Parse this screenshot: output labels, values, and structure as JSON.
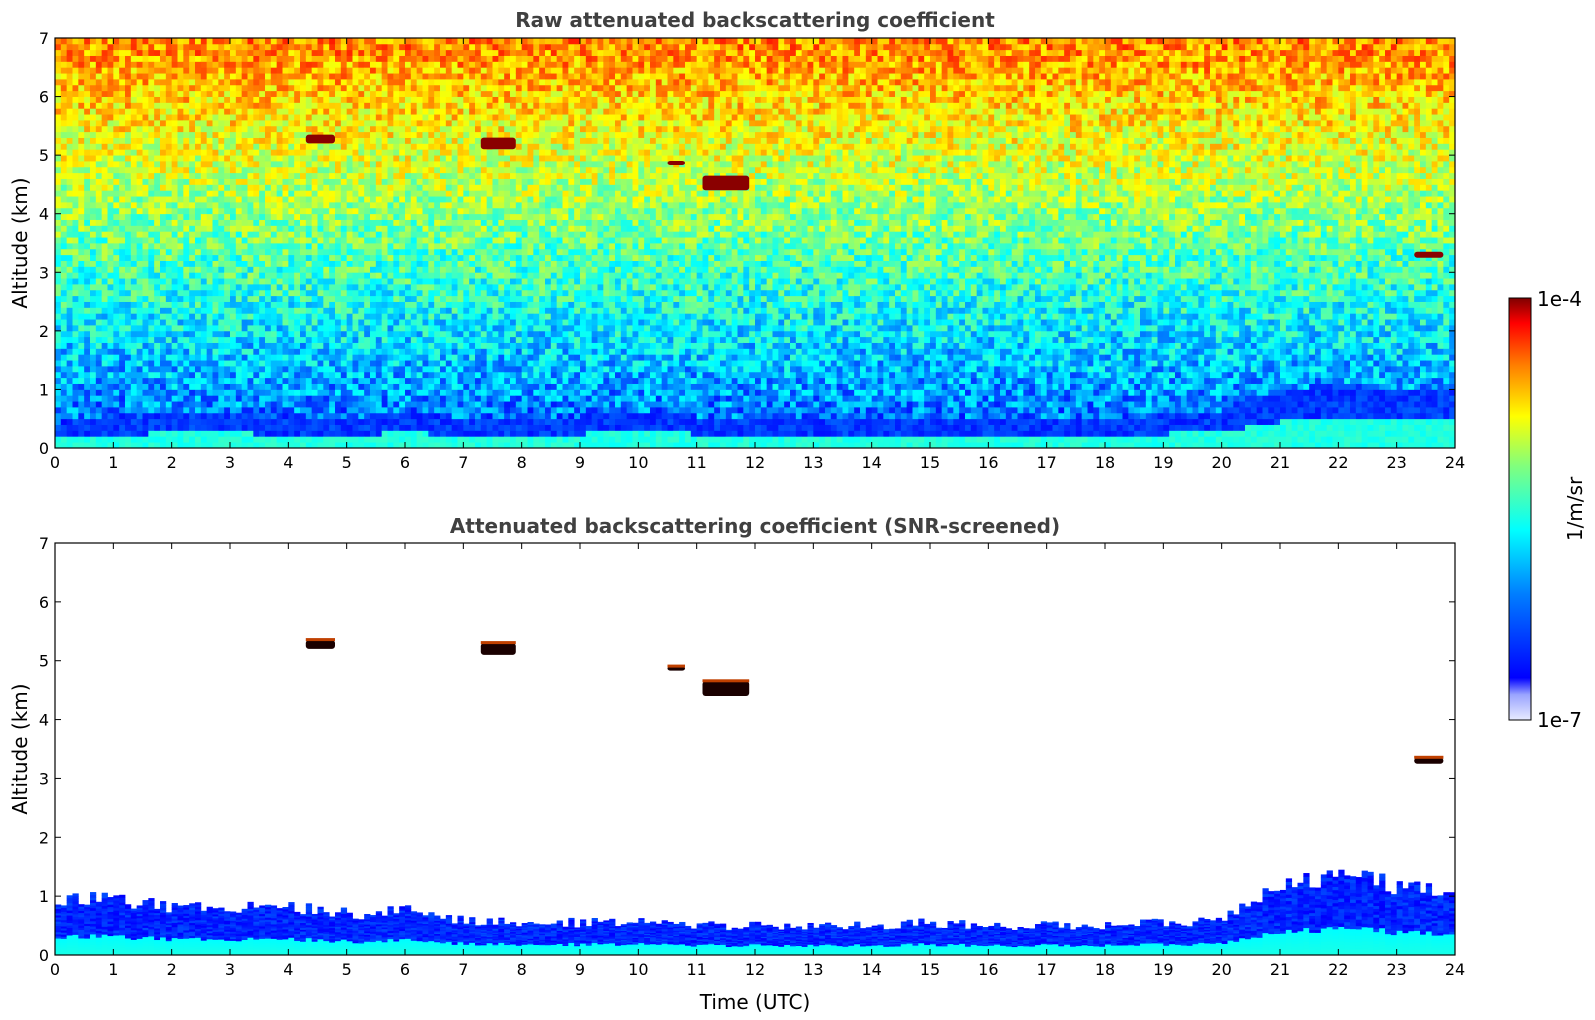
{
  "chart_data": [
    {
      "type": "heatmap",
      "title": "Raw attenuated backscattering coefficient",
      "xlabel": "",
      "ylabel": "Altitude (km)",
      "xlim": [
        0,
        24
      ],
      "ylim": [
        0,
        7
      ],
      "xticks": [
        "0",
        "1",
        "2",
        "3",
        "4",
        "5",
        "6",
        "7",
        "8",
        "9",
        "10",
        "11",
        "12",
        "13",
        "14",
        "15",
        "16",
        "17",
        "18",
        "19",
        "20",
        "21",
        "22",
        "23",
        "24"
      ],
      "yticks": [
        "0",
        "1",
        "2",
        "3",
        "4",
        "5",
        "6",
        "7"
      ],
      "features": [
        {
          "kind": "boundary-layer",
          "x": [
            0,
            24
          ],
          "top_km": [
            0.4,
            0.5,
            0.6,
            0.6,
            0.5,
            0.5,
            0.6,
            0.5,
            0.55,
            0.55,
            0.6,
            0.55,
            0.5,
            0.5,
            0.45,
            0.5,
            0.5,
            0.5,
            0.5,
            0.55,
            0.6,
            1.0,
            1.1,
            1.0,
            1.0
          ]
        },
        {
          "kind": "cloud",
          "x": [
            4.3,
            4.8
          ],
          "alt_km": [
            5.2,
            5.35
          ]
        },
        {
          "kind": "cloud",
          "x": [
            7.3,
            7.9
          ],
          "alt_km": [
            5.1,
            5.3
          ]
        },
        {
          "kind": "cloud",
          "x": [
            10.5,
            10.8
          ],
          "alt_km": [
            4.85,
            4.9
          ]
        },
        {
          "kind": "cloud",
          "x": [
            11.1,
            11.9
          ],
          "alt_km": [
            4.4,
            4.65
          ]
        },
        {
          "kind": "cloud",
          "x": [
            23.3,
            23.8
          ],
          "alt_km": [
            3.25,
            3.35
          ]
        }
      ]
    },
    {
      "type": "heatmap",
      "title": "Attenuated backscattering coefficient (SNR-screened)",
      "xlabel": "Time (UTC)",
      "ylabel": "Altitude (km)",
      "xlim": [
        0,
        24
      ],
      "ylim": [
        0,
        7
      ],
      "xticks": [
        "0",
        "1",
        "2",
        "3",
        "4",
        "5",
        "6",
        "7",
        "8",
        "9",
        "10",
        "11",
        "12",
        "13",
        "14",
        "15",
        "16",
        "17",
        "18",
        "19",
        "20",
        "21",
        "22",
        "23",
        "24"
      ],
      "yticks": [
        "0",
        "1",
        "2",
        "3",
        "4",
        "5",
        "6",
        "7"
      ],
      "features": [
        {
          "kind": "boundary-layer",
          "x": [
            0,
            24
          ],
          "top_km": [
            0.9,
            0.95,
            0.8,
            0.85,
            0.8,
            0.7,
            0.75,
            0.6,
            0.55,
            0.55,
            0.55,
            0.5,
            0.5,
            0.5,
            0.5,
            0.55,
            0.5,
            0.5,
            0.5,
            0.55,
            0.6,
            1.2,
            1.3,
            1.2,
            1.0
          ]
        },
        {
          "kind": "cloud",
          "x": [
            4.3,
            4.8
          ],
          "alt_km": [
            5.2,
            5.35
          ]
        },
        {
          "kind": "cloud",
          "x": [
            7.3,
            7.9
          ],
          "alt_km": [
            5.1,
            5.3
          ]
        },
        {
          "kind": "cloud",
          "x": [
            10.5,
            10.8
          ],
          "alt_km": [
            4.85,
            4.9
          ]
        },
        {
          "kind": "cloud",
          "x": [
            11.1,
            11.9
          ],
          "alt_km": [
            4.4,
            4.65
          ]
        },
        {
          "kind": "cloud",
          "x": [
            23.3,
            23.8
          ],
          "alt_km": [
            3.25,
            3.35
          ]
        }
      ]
    }
  ],
  "colorbar": {
    "min_label": "1e-7",
    "max_label": "1e-4",
    "label": "1/m/sr",
    "colormap": [
      "#00007f",
      "#0000ff",
      "#007fff",
      "#00ffff",
      "#7fff7f",
      "#ffff00",
      "#ff7f00",
      "#ff0000",
      "#7f0000"
    ]
  }
}
